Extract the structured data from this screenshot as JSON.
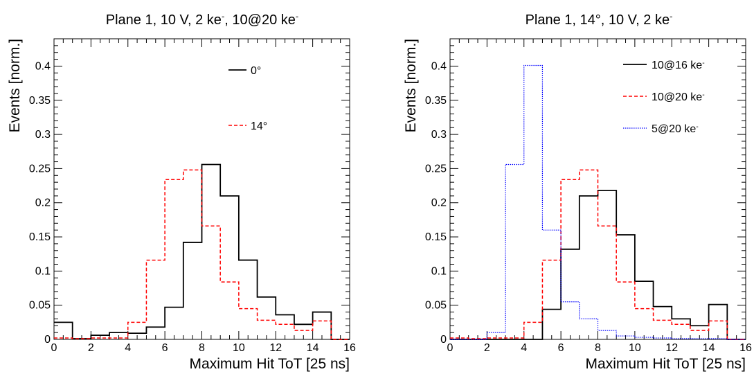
{
  "chart_data": [
    {
      "type": "step-histogram",
      "title": "Plane 1, 10 V, 2 ke, 10@20 ke",
      "title_parts": [
        {
          "text": "Plane 1, 10 V, 2 ke"
        },
        {
          "text": "-",
          "sup": true
        },
        {
          "text": ", 10@20 ke"
        },
        {
          "text": "-",
          "sup": true
        }
      ],
      "xlabel": "Maximum Hit ToT [25 ns]",
      "ylabel": "Events [norm.]",
      "xlim": [
        0,
        16
      ],
      "ylim": [
        0,
        0.44
      ],
      "xticks": [
        "0",
        "2",
        "4",
        "6",
        "8",
        "10",
        "12",
        "14",
        "16"
      ],
      "yticks": [
        "0",
        "0.05",
        "0.1",
        "0.15",
        "0.2",
        "0.25",
        "0.3",
        "0.35",
        "0.4"
      ],
      "legend_placement": "top-right",
      "series": [
        {
          "name": "0°",
          "label_parts": [
            {
              "text": "0°"
            }
          ],
          "color": "#000000",
          "style": "solid",
          "values": [
            0.025,
            0.001,
            0.006,
            0.01,
            0.009,
            0.018,
            0.047,
            0.142,
            0.256,
            0.21,
            0.116,
            0.062,
            0.036,
            0.022,
            0.04,
            0.0
          ]
        },
        {
          "name": "14°",
          "label_parts": [
            {
              "text": "14°"
            }
          ],
          "color": "#ff0000",
          "style": "dashed",
          "values": [
            0.002,
            0.001,
            0.002,
            0.002,
            0.025,
            0.116,
            0.234,
            0.248,
            0.166,
            0.084,
            0.045,
            0.028,
            0.022,
            0.013,
            0.027,
            0.0
          ]
        }
      ]
    },
    {
      "type": "step-histogram",
      "title": "Plane 1, 14°, 10 V, 2 ke",
      "title_parts": [
        {
          "text": "Plane 1, 14°, 10 V, 2 ke"
        },
        {
          "text": "-",
          "sup": true
        }
      ],
      "xlabel": "Maximum Hit ToT [25 ns]",
      "ylabel": "Events [norm.]",
      "xlim": [
        0,
        16
      ],
      "ylim": [
        0,
        0.44
      ],
      "xticks": [
        "0",
        "2",
        "4",
        "6",
        "8",
        "10",
        "12",
        "14",
        "16"
      ],
      "yticks": [
        "0",
        "0.05",
        "0.1",
        "0.15",
        "0.2",
        "0.25",
        "0.3",
        "0.35",
        "0.4"
      ],
      "legend_placement": "top-right",
      "series": [
        {
          "name": "10@16 ke",
          "label_parts": [
            {
              "text": "10@16 ke"
            },
            {
              "text": "-",
              "sup": true
            }
          ],
          "color": "#000000",
          "style": "solid",
          "values": [
            0.0,
            0.0,
            0.0,
            0.0,
            0.0,
            0.044,
            0.132,
            0.21,
            0.218,
            0.153,
            0.085,
            0.048,
            0.03,
            0.02,
            0.051,
            0.0
          ]
        },
        {
          "name": "10@20 ke",
          "label_parts": [
            {
              "text": "10@20 ke"
            },
            {
              "text": "-",
              "sup": true
            }
          ],
          "color": "#ff0000",
          "style": "dashed",
          "values": [
            0.002,
            0.001,
            0.002,
            0.002,
            0.025,
            0.116,
            0.234,
            0.248,
            0.166,
            0.084,
            0.045,
            0.028,
            0.022,
            0.013,
            0.027,
            0.0
          ]
        },
        {
          "name": "5@20 ke",
          "label_parts": [
            {
              "text": "5@20 ke"
            },
            {
              "text": "-",
              "sup": true
            }
          ],
          "color": "#0000ff",
          "style": "dotted",
          "values": [
            0.0,
            0.0,
            0.01,
            0.256,
            0.401,
            0.16,
            0.055,
            0.03,
            0.013,
            0.005,
            0.003,
            0.002,
            0.001,
            0.001,
            0.001,
            0.0
          ]
        }
      ]
    }
  ]
}
